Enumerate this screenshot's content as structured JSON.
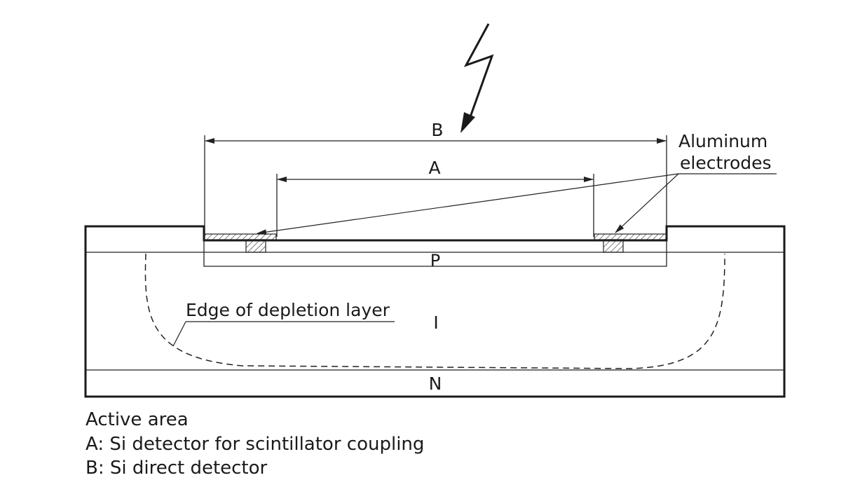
{
  "diagram": {
    "labels": {
      "dimension_b": "B",
      "dimension_a": "A",
      "aluminum_line1": "Aluminum",
      "aluminum_line2": "electrodes",
      "layer_p": "P",
      "layer_i": "I",
      "layer_n": "N",
      "depletion": "Edge of depletion layer"
    },
    "icons": {
      "radiation": "lightning-arrow-icon"
    }
  },
  "legend": {
    "title": "Active area",
    "item_a": "A: Si detector for scintillator coupling",
    "item_b": "B: Si direct detector"
  }
}
